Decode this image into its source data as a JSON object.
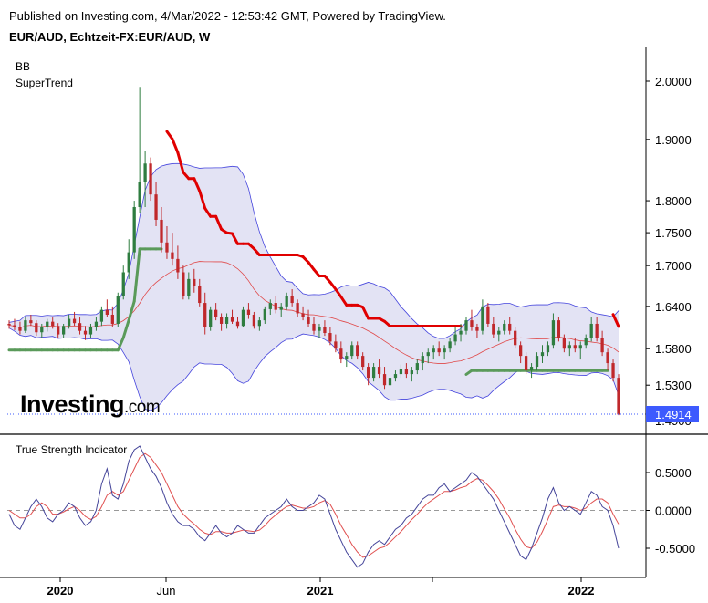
{
  "header": {
    "published": "Published on Investing.com, 4/Mar/2022 - 12:53:42 GMT, Powered by TradingView.",
    "symbol": "EUR/AUD, Echtzeit-FX:EUR/AUD, W"
  },
  "indicators": {
    "bb": "BB",
    "supertrend": "SuperTrend",
    "tsi": "True Strength Indicator"
  },
  "logo": {
    "main": "Investing",
    "suffix": ".com"
  },
  "colors": {
    "bull": "#2f7d40",
    "bear": "#c0282b",
    "st_down": "#e00000",
    "st_up": "#5a9a5a",
    "bb_fill": "#e3e3f4",
    "bb_line": "#4444dd",
    "bb_mid": "#e04848",
    "tsi": "#444499",
    "signal": "#e05050",
    "price_badge": "#3d5afe"
  },
  "chart_data": [
    {
      "type": "candlestick",
      "title": "EUR/AUD, Echtzeit-FX:EUR/AUD, W",
      "y_ticks": [
        "2.0000",
        "1.9000",
        "1.8000",
        "1.7500",
        "1.7000",
        "1.6400",
        "1.5800",
        "1.5300",
        "1.4900"
      ],
      "y_scale": "log",
      "x_ticks": [
        "2020",
        "Jun",
        "2021",
        "2022"
      ],
      "last_price": "1.4914",
      "candles": [
        [
          1.615,
          1.62,
          1.608,
          1.613
        ],
        [
          1.613,
          1.622,
          1.606,
          1.61
        ],
        [
          1.61,
          1.618,
          1.6,
          1.605
        ],
        [
          1.605,
          1.625,
          1.602,
          1.62
        ],
        [
          1.62,
          1.628,
          1.612,
          1.616
        ],
        [
          1.616,
          1.62,
          1.598,
          1.603
        ],
        [
          1.603,
          1.615,
          1.595,
          1.61
        ],
        [
          1.61,
          1.622,
          1.604,
          1.618
        ],
        [
          1.618,
          1.624,
          1.608,
          1.612
        ],
        [
          1.612,
          1.616,
          1.595,
          1.6
        ],
        [
          1.6,
          1.615,
          1.595,
          1.612
        ],
        [
          1.612,
          1.628,
          1.608,
          1.622
        ],
        [
          1.622,
          1.632,
          1.612,
          1.616
        ],
        [
          1.616,
          1.624,
          1.6,
          1.605
        ],
        [
          1.605,
          1.612,
          1.592,
          1.6
        ],
        [
          1.6,
          1.615,
          1.595,
          1.61
        ],
        [
          1.61,
          1.625,
          1.605,
          1.618
        ],
        [
          1.618,
          1.64,
          1.612,
          1.635
        ],
        [
          1.635,
          1.65,
          1.625,
          1.628
        ],
        [
          1.628,
          1.64,
          1.61,
          1.615
        ],
        [
          1.615,
          1.66,
          1.61,
          1.655
        ],
        [
          1.655,
          1.7,
          1.65,
          1.69
        ],
        [
          1.69,
          1.74,
          1.68,
          1.72
        ],
        [
          1.72,
          1.8,
          1.71,
          1.79
        ],
        [
          1.79,
          1.99,
          1.78,
          1.83
        ],
        [
          1.83,
          1.88,
          1.79,
          1.86
        ],
        [
          1.86,
          1.87,
          1.8,
          1.81
        ],
        [
          1.81,
          1.83,
          1.76,
          1.77
        ],
        [
          1.77,
          1.79,
          1.72,
          1.735
        ],
        [
          1.735,
          1.76,
          1.71,
          1.72
        ],
        [
          1.72,
          1.75,
          1.7,
          1.71
        ],
        [
          1.71,
          1.73,
          1.68,
          1.69
        ],
        [
          1.69,
          1.7,
          1.65,
          1.655
        ],
        [
          1.655,
          1.69,
          1.65,
          1.68
        ],
        [
          1.68,
          1.695,
          1.66,
          1.67
        ],
        [
          1.67,
          1.68,
          1.64,
          1.645
        ],
        [
          1.645,
          1.66,
          1.6,
          1.61
        ],
        [
          1.61,
          1.64,
          1.605,
          1.635
        ],
        [
          1.635,
          1.645,
          1.62,
          1.625
        ],
        [
          1.625,
          1.63,
          1.605,
          1.615
        ],
        [
          1.615,
          1.63,
          1.608,
          1.625
        ],
        [
          1.625,
          1.635,
          1.615,
          1.618
        ],
        [
          1.618,
          1.625,
          1.608,
          1.612
        ],
        [
          1.612,
          1.64,
          1.61,
          1.635
        ],
        [
          1.635,
          1.645,
          1.622,
          1.628
        ],
        [
          1.628,
          1.632,
          1.608,
          1.612
        ],
        [
          1.612,
          1.625,
          1.605,
          1.62
        ],
        [
          1.62,
          1.64,
          1.615,
          1.636
        ],
        [
          1.636,
          1.65,
          1.628,
          1.645
        ],
        [
          1.645,
          1.655,
          1.63,
          1.635
        ],
        [
          1.635,
          1.645,
          1.625,
          1.64
        ],
        [
          1.64,
          1.66,
          1.635,
          1.655
        ],
        [
          1.655,
          1.665,
          1.64,
          1.645
        ],
        [
          1.645,
          1.65,
          1.625,
          1.63
        ],
        [
          1.63,
          1.64,
          1.62,
          1.625
        ],
        [
          1.625,
          1.635,
          1.61,
          1.615
        ],
        [
          1.615,
          1.625,
          1.6,
          1.605
        ],
        [
          1.605,
          1.615,
          1.595,
          1.61
        ],
        [
          1.61,
          1.62,
          1.598,
          1.602
        ],
        [
          1.602,
          1.61,
          1.585,
          1.59
        ],
        [
          1.59,
          1.6,
          1.575,
          1.58
        ],
        [
          1.58,
          1.59,
          1.56,
          1.565
        ],
        [
          1.565,
          1.575,
          1.555,
          1.57
        ],
        [
          1.57,
          1.59,
          1.565,
          1.585
        ],
        [
          1.585,
          1.59,
          1.565,
          1.57
        ],
        [
          1.57,
          1.575,
          1.55,
          1.555
        ],
        [
          1.555,
          1.56,
          1.53,
          1.54
        ],
        [
          1.54,
          1.56,
          1.535,
          1.555
        ],
        [
          1.555,
          1.565,
          1.54,
          1.545
        ],
        [
          1.545,
          1.555,
          1.525,
          1.53
        ],
        [
          1.53,
          1.545,
          1.525,
          1.54
        ],
        [
          1.54,
          1.55,
          1.535,
          1.545
        ],
        [
          1.545,
          1.558,
          1.54,
          1.552
        ],
        [
          1.552,
          1.56,
          1.54,
          1.545
        ],
        [
          1.545,
          1.555,
          1.535,
          1.55
        ],
        [
          1.55,
          1.565,
          1.545,
          1.56
        ],
        [
          1.56,
          1.575,
          1.55,
          1.57
        ],
        [
          1.57,
          1.58,
          1.56,
          1.575
        ],
        [
          1.575,
          1.585,
          1.565,
          1.58
        ],
        [
          1.58,
          1.59,
          1.57,
          1.575
        ],
        [
          1.575,
          1.585,
          1.565,
          1.58
        ],
        [
          1.58,
          1.595,
          1.575,
          1.59
        ],
        [
          1.59,
          1.61,
          1.585,
          1.6
        ],
        [
          1.6,
          1.615,
          1.59,
          1.605
        ],
        [
          1.605,
          1.625,
          1.6,
          1.62
        ],
        [
          1.62,
          1.635,
          1.605,
          1.61
        ],
        [
          1.61,
          1.615,
          1.595,
          1.605
        ],
        [
          1.605,
          1.65,
          1.6,
          1.64
        ],
        [
          1.64,
          1.645,
          1.61,
          1.615
        ],
        [
          1.615,
          1.625,
          1.595,
          1.6
        ],
        [
          1.6,
          1.61,
          1.59,
          1.605
        ],
        [
          1.605,
          1.62,
          1.6,
          1.615
        ],
        [
          1.615,
          1.625,
          1.6,
          1.605
        ],
        [
          1.605,
          1.61,
          1.58,
          1.585
        ],
        [
          1.585,
          1.59,
          1.56,
          1.57
        ],
        [
          1.57,
          1.575,
          1.545,
          1.55
        ],
        [
          1.55,
          1.56,
          1.54,
          1.555
        ],
        [
          1.555,
          1.575,
          1.55,
          1.57
        ],
        [
          1.57,
          1.585,
          1.56,
          1.575
        ],
        [
          1.575,
          1.59,
          1.57,
          1.585
        ],
        [
          1.585,
          1.63,
          1.58,
          1.62
        ],
        [
          1.62,
          1.625,
          1.59,
          1.595
        ],
        [
          1.595,
          1.6,
          1.575,
          1.58
        ],
        [
          1.58,
          1.59,
          1.57,
          1.585
        ],
        [
          1.585,
          1.595,
          1.575,
          1.58
        ],
        [
          1.58,
          1.59,
          1.565,
          1.585
        ],
        [
          1.585,
          1.6,
          1.58,
          1.595
        ],
        [
          1.595,
          1.625,
          1.59,
          1.615
        ],
        [
          1.615,
          1.625,
          1.59,
          1.595
        ],
        [
          1.595,
          1.605,
          1.57,
          1.575
        ],
        [
          1.575,
          1.58,
          1.55,
          1.56
        ],
        [
          1.56,
          1.565,
          1.535,
          1.54
        ],
        [
          1.54,
          1.545,
          1.49,
          1.491
        ]
      ]
    },
    {
      "type": "line",
      "title": "True Strength Indicator",
      "y_ticks": [
        "0.5000",
        "0.0000",
        "-0.5000"
      ],
      "series": [
        {
          "values": [
            -0.05,
            -0.2,
            -0.25,
            -0.1,
            0.05,
            0.15,
            0.05,
            -0.1,
            -0.15,
            -0.05,
            0.0,
            0.1,
            0.05,
            -0.1,
            -0.2,
            -0.15,
            0.0,
            0.35,
            0.55,
            0.2,
            0.15,
            0.35,
            0.65,
            0.8,
            0.85,
            0.7,
            0.55,
            0.45,
            0.3,
            0.1,
            -0.05,
            -0.15,
            -0.2,
            -0.2,
            -0.25,
            -0.35,
            -0.4,
            -0.3,
            -0.2,
            -0.3,
            -0.35,
            -0.3,
            -0.2,
            -0.25,
            -0.3,
            -0.3,
            -0.2,
            -0.1,
            -0.05,
            0.0,
            0.05,
            0.15,
            0.05,
            0.0,
            0.0,
            0.05,
            0.1,
            0.2,
            0.15,
            -0.05,
            -0.25,
            -0.4,
            -0.55,
            -0.65,
            -0.75,
            -0.7,
            -0.55,
            -0.45,
            -0.4,
            -0.45,
            -0.35,
            -0.25,
            -0.2,
            -0.1,
            -0.05,
            0.05,
            0.15,
            0.2,
            0.2,
            0.3,
            0.35,
            0.25,
            0.3,
            0.35,
            0.4,
            0.5,
            0.45,
            0.35,
            0.25,
            0.15,
            0.0,
            -0.15,
            -0.3,
            -0.45,
            -0.6,
            -0.65,
            -0.5,
            -0.3,
            -0.1,
            0.15,
            0.3,
            0.1,
            0.0,
            0.05,
            0.0,
            -0.05,
            0.1,
            0.25,
            0.2,
            0.05,
            0.0,
            -0.2,
            -0.5
          ]
        },
        {
          "values": [
            0.0,
            -0.05,
            -0.1,
            -0.1,
            -0.05,
            0.05,
            0.1,
            0.05,
            -0.05,
            -0.05,
            -0.02,
            0.02,
            0.05,
            0.0,
            -0.08,
            -0.12,
            -0.08,
            0.05,
            0.2,
            0.25,
            0.2,
            0.25,
            0.4,
            0.55,
            0.7,
            0.75,
            0.7,
            0.6,
            0.5,
            0.35,
            0.2,
            0.05,
            -0.05,
            -0.12,
            -0.18,
            -0.25,
            -0.3,
            -0.32,
            -0.28,
            -0.28,
            -0.3,
            -0.3,
            -0.28,
            -0.26,
            -0.27,
            -0.28,
            -0.26,
            -0.2,
            -0.12,
            -0.06,
            0.0,
            0.05,
            0.07,
            0.05,
            0.03,
            0.03,
            0.05,
            0.1,
            0.13,
            0.08,
            -0.05,
            -0.2,
            -0.32,
            -0.45,
            -0.55,
            -0.62,
            -0.6,
            -0.55,
            -0.5,
            -0.48,
            -0.42,
            -0.35,
            -0.28,
            -0.2,
            -0.12,
            -0.05,
            0.03,
            0.1,
            0.15,
            0.2,
            0.25,
            0.25,
            0.27,
            0.3,
            0.32,
            0.38,
            0.42,
            0.4,
            0.33,
            0.25,
            0.15,
            0.02,
            -0.1,
            -0.25,
            -0.38,
            -0.48,
            -0.5,
            -0.42,
            -0.28,
            -0.12,
            0.05,
            0.07,
            0.05,
            0.05,
            0.03,
            0.0,
            0.03,
            0.1,
            0.15,
            0.15,
            0.1,
            -0.05,
            -0.18
          ]
        }
      ]
    }
  ]
}
